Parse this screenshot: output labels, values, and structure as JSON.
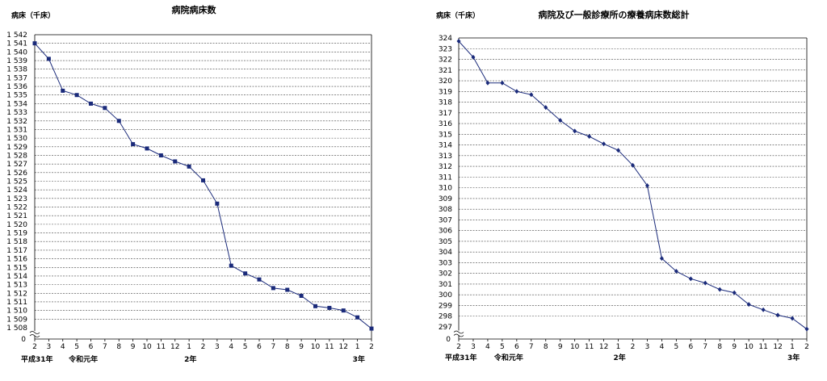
{
  "chart_data": [
    {
      "type": "line",
      "title": "病院病床数",
      "unit_label": "病床（千床）",
      "ylim": [
        1508,
        1542
      ],
      "y_break": true,
      "zero_label": "0",
      "y_tick_labels": [
        "1 508",
        "1 509",
        "1 510",
        "1 511",
        "1 512",
        "1 513",
        "1 514",
        "1 515",
        "1 516",
        "1 517",
        "1 518",
        "1 519",
        "1 520",
        "1 521",
        "1 522",
        "1 523",
        "1 524",
        "1 525",
        "1 526",
        "1 527",
        "1 528",
        "1 529",
        "1 530",
        "1 531",
        "1 532",
        "1 533",
        "1 534",
        "1 535",
        "1 536",
        "1 537",
        "1 538",
        "1 539",
        "1 540",
        "1 541",
        "1 542"
      ],
      "categories": [
        "2",
        "3",
        "4",
        "5",
        "6",
        "7",
        "8",
        "9",
        "10",
        "11",
        "12",
        "1",
        "2",
        "3",
        "4",
        "5",
        "6",
        "7",
        "8",
        "9",
        "10",
        "11",
        "12",
        "1",
        "2"
      ],
      "era_labels": [
        {
          "index": 0,
          "text": "平成31年"
        },
        {
          "index": 3,
          "text": "令和元年"
        },
        {
          "index": 11,
          "text": "2年"
        },
        {
          "index": 23,
          "text": "3年"
        }
      ],
      "marker": "square",
      "grid": true,
      "series": [
        {
          "values": [
            1541.0,
            1539.2,
            1535.5,
            1535.0,
            1534.0,
            1533.5,
            1532.0,
            1529.3,
            1528.8,
            1528.0,
            1527.3,
            1526.7,
            1525.1,
            1522.4,
            1515.2,
            1514.3,
            1513.6,
            1512.6,
            1512.4,
            1511.7,
            1510.5,
            1510.3,
            1510.0,
            1509.2,
            1507.9
          ]
        }
      ]
    },
    {
      "type": "line",
      "title": "病院及び一般診療所の療養病床数総計",
      "unit_label": "病床（千床）",
      "ylim": [
        297,
        324
      ],
      "y_break": true,
      "zero_label": "0",
      "y_tick_labels": [
        "297",
        "298",
        "299",
        "300",
        "301",
        "302",
        "303",
        "304",
        "305",
        "306",
        "307",
        "308",
        "309",
        "310",
        "311",
        "312",
        "313",
        "314",
        "315",
        "316",
        "317",
        "318",
        "319",
        "320",
        "321",
        "322",
        "323",
        "324"
      ],
      "categories": [
        "2",
        "3",
        "4",
        "5",
        "6",
        "7",
        "8",
        "9",
        "10",
        "11",
        "12",
        "1",
        "2",
        "3",
        "4",
        "5",
        "6",
        "7",
        "8",
        "9",
        "10",
        "11",
        "12",
        "1",
        "2"
      ],
      "era_labels": [
        {
          "index": 0,
          "text": "平成31年"
        },
        {
          "index": 3,
          "text": "令和元年"
        },
        {
          "index": 11,
          "text": "2年"
        },
        {
          "index": 23,
          "text": "3年"
        }
      ],
      "marker": "diamond",
      "grid": true,
      "series": [
        {
          "values": [
            323.7,
            322.2,
            319.8,
            319.8,
            319.0,
            318.7,
            317.5,
            316.3,
            315.3,
            314.8,
            314.1,
            313.5,
            312.1,
            310.2,
            303.4,
            302.2,
            301.5,
            301.1,
            300.5,
            300.2,
            299.1,
            298.6,
            298.1,
            297.8,
            296.8
          ]
        }
      ]
    }
  ]
}
